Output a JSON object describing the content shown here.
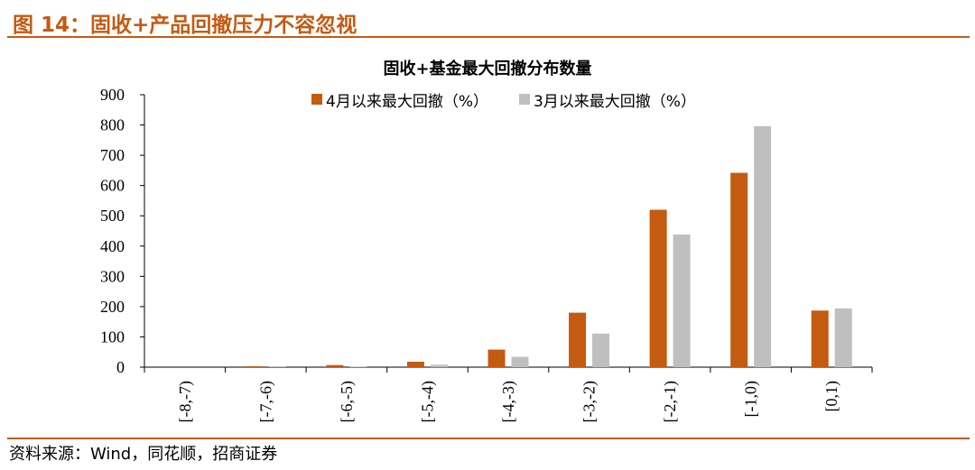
{
  "figure": {
    "title": "图 14：固收+产品回撤压力不容忽视"
  },
  "source": "资料来源：Wind，同花顺，招商证券",
  "chart_data": {
    "type": "bar",
    "title": "固收+基金最大回撤分布数量",
    "categories": [
      "[-8,-7)",
      "[-7,-6)",
      "[-6,-5)",
      "[-5,-4)",
      "[-4,-3)",
      "[-3,-2)",
      "[-2,-1)",
      "[-1,0)",
      "[0,1)"
    ],
    "series": [
      {
        "name": "4月以来最大回撤（%）",
        "color": "#c55a11",
        "values": [
          0,
          3,
          7,
          18,
          58,
          180,
          520,
          642,
          187
        ]
      },
      {
        "name": "3月以来最大回撤（%）",
        "color": "#bfbfbf",
        "values": [
          0,
          1,
          2,
          8,
          34,
          111,
          438,
          796,
          194
        ]
      }
    ],
    "ylim": [
      0,
      900
    ],
    "yticks": [
      0,
      100,
      200,
      300,
      400,
      500,
      600,
      700,
      800,
      900
    ],
    "grid": false,
    "legend_position": "top"
  }
}
